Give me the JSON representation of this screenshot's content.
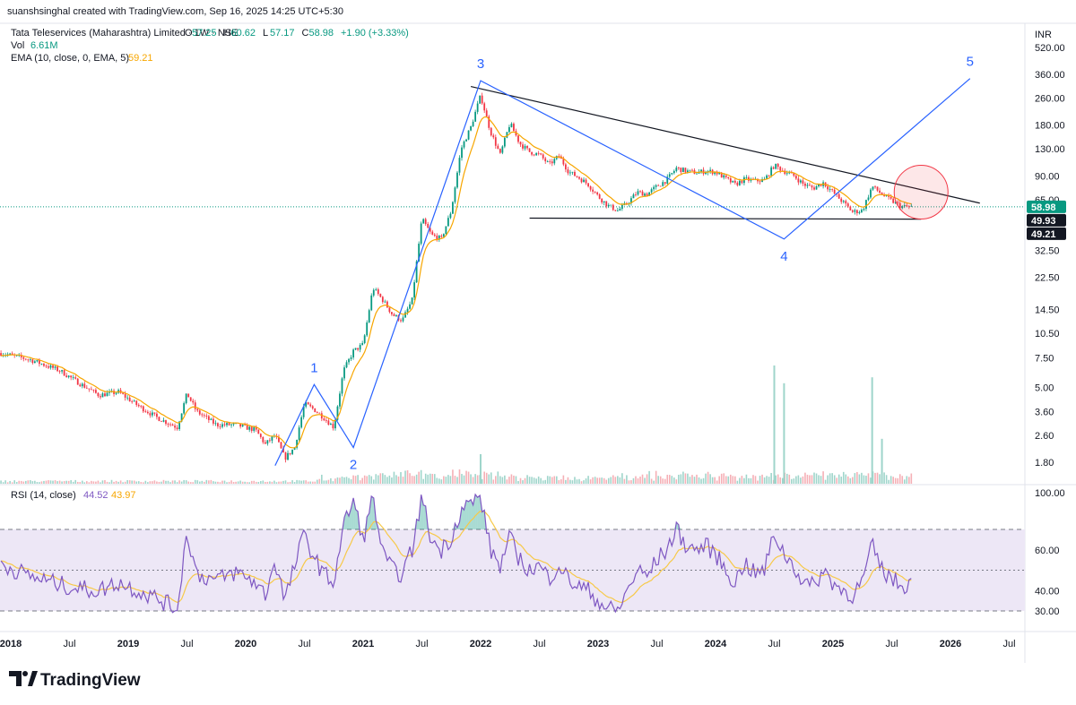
{
  "attribution": "suanshsinghal created with TradingView.com, Sep 16, 2025 14:25 UTC+5:30",
  "legend": {
    "symbol": "Tata Teleservices (Maharashtra) Limited · 1W · NSE",
    "ohlc": [
      {
        "key": "O",
        "value": "57.25"
      },
      {
        "key": "H",
        "value": "60.62"
      },
      {
        "key": "L",
        "value": "57.17"
      },
      {
        "key": "C",
        "value": "58.98"
      }
    ],
    "change": "+1.90 (+3.33%)",
    "vol_label": "Vol",
    "vol_value": "6.61M",
    "ema_label": "EMA (10, close, 0, EMA, 5)",
    "ema_value": "59.21",
    "rsi_label": "RSI (14, close)",
    "rsi_value": "44.52",
    "rsi_ma_value": "43.97"
  },
  "currency": "INR",
  "branding": "TradingView",
  "colors": {
    "up": "#089981",
    "down": "#f23645",
    "ema": "#f7a600",
    "wave": "#2962ff",
    "trendline": "#131722",
    "rsi": "#7e57c2",
    "rsi_ma": "#f7c948",
    "rsi_band": "#ede7f6",
    "price_line": "#089981",
    "circle": "#f23645"
  },
  "price_axis_ticks": [
    "520.00",
    "360.00",
    "260.00",
    "180.00",
    "130.00",
    "90.00",
    "65.00",
    "32.50",
    "22.50",
    "14.50",
    "10.50",
    "7.50",
    "5.00",
    "3.60",
    "2.60",
    "1.80"
  ],
  "price_labels": [
    {
      "text": "58.98",
      "value": 58.98,
      "style": "last"
    },
    {
      "text": "49.93",
      "value": 49.93,
      "style": "dark"
    },
    {
      "text": "49.21",
      "value": 49.21,
      "style": "dark"
    }
  ],
  "rsi_axis_ticks": [
    "100.00",
    "60.00",
    "40.00",
    "30.00"
  ],
  "time_axis_ticks": [
    "2018",
    "Jul",
    "2019",
    "Jul",
    "2020",
    "Jul",
    "2021",
    "Jul",
    "2022",
    "Jul",
    "2023",
    "Jul",
    "2024",
    "Jul",
    "2025",
    "Jul",
    "2026",
    "Jul"
  ],
  "chart_data": {
    "type": "candlestick",
    "title": "Tata Teleservices (Maharashtra) Limited · 1W · NSE",
    "scale": "log",
    "x_range": [
      "2017-12",
      "2026-10"
    ],
    "y_range": [
      1.5,
      620
    ],
    "price_path": [
      [
        "2017-12",
        8.0
      ],
      [
        "2018-03",
        7.3
      ],
      [
        "2018-06",
        6.3
      ],
      [
        "2018-08",
        5.3
      ],
      [
        "2018-10",
        4.5
      ],
      [
        "2018-12",
        4.7
      ],
      [
        "2019-02",
        3.9
      ],
      [
        "2019-04",
        3.3
      ],
      [
        "2019-06",
        2.9
      ],
      [
        "2019-07",
        4.6
      ],
      [
        "2019-08",
        3.6
      ],
      [
        "2019-10",
        3.0
      ],
      [
        "2019-12",
        3.0
      ],
      [
        "2020-02",
        2.8
      ],
      [
        "2020-03",
        2.3
      ],
      [
        "2020-04",
        2.6
      ],
      [
        "2020-05",
        1.9
      ],
      [
        "2020-06",
        2.2
      ],
      [
        "2020-07",
        4.0
      ],
      [
        "2020-08",
        3.7
      ],
      [
        "2020-09",
        3.3
      ],
      [
        "2020-10",
        2.9
      ],
      [
        "2020-11",
        6.3
      ],
      [
        "2020-12",
        8.2
      ],
      [
        "2021-01",
        9.0
      ],
      [
        "2021-02",
        19.5
      ],
      [
        "2021-03",
        16.5
      ],
      [
        "2021-04",
        13.5
      ],
      [
        "2021-05",
        12.5
      ],
      [
        "2021-06",
        16.5
      ],
      [
        "2021-07",
        50.0
      ],
      [
        "2021-08",
        40.0
      ],
      [
        "2021-09",
        38.0
      ],
      [
        "2021-10",
        56.0
      ],
      [
        "2021-11",
        130.0
      ],
      [
        "2021-12",
        175.0
      ],
      [
        "2022-01",
        270.0
      ],
      [
        "2022-02",
        165.0
      ],
      [
        "2022-03",
        120.0
      ],
      [
        "2022-04",
        185.0
      ],
      [
        "2022-05",
        140.0
      ],
      [
        "2022-06",
        125.0
      ],
      [
        "2022-07",
        120.0
      ],
      [
        "2022-08",
        105.0
      ],
      [
        "2022-09",
        118.0
      ],
      [
        "2022-10",
        95.0
      ],
      [
        "2022-11",
        88.0
      ],
      [
        "2022-12",
        80.0
      ],
      [
        "2023-01",
        68.0
      ],
      [
        "2023-02",
        60.0
      ],
      [
        "2023-03",
        56.0
      ],
      [
        "2023-04",
        62.0
      ],
      [
        "2023-05",
        72.0
      ],
      [
        "2023-06",
        70.0
      ],
      [
        "2023-07",
        78.0
      ],
      [
        "2023-08",
        85.0
      ],
      [
        "2023-09",
        100.0
      ],
      [
        "2023-10",
        96.0
      ],
      [
        "2023-11",
        94.0
      ],
      [
        "2023-12",
        96.0
      ],
      [
        "2024-01",
        95.0
      ],
      [
        "2024-02",
        87.0
      ],
      [
        "2024-03",
        80.0
      ],
      [
        "2024-04",
        86.0
      ],
      [
        "2024-05",
        84.0
      ],
      [
        "2024-06",
        85.0
      ],
      [
        "2024-07",
        104.0
      ],
      [
        "2024-08",
        96.0
      ],
      [
        "2024-09",
        90.0
      ],
      [
        "2024-10",
        80.0
      ],
      [
        "2024-11",
        76.0
      ],
      [
        "2024-12",
        82.0
      ],
      [
        "2025-01",
        72.0
      ],
      [
        "2025-02",
        63.0
      ],
      [
        "2025-03",
        55.0
      ],
      [
        "2025-04",
        56.0
      ],
      [
        "2025-05",
        78.0
      ],
      [
        "2025-06",
        70.0
      ],
      [
        "2025-07",
        64.0
      ],
      [
        "2025-08",
        59.0
      ],
      [
        "2025-09",
        58.98
      ]
    ],
    "ema": {
      "name": "EMA (10, close, 0, EMA, 5)",
      "last": 59.21
    },
    "volume_spikes": [
      {
        "x": "2022-01",
        "v": 0.25
      },
      {
        "x": "2024-07",
        "v": 1.0
      },
      {
        "x": "2024-08",
        "v": 0.85
      },
      {
        "x": "2025-05",
        "v": 0.9
      },
      {
        "x": "2025-06",
        "v": 0.38
      }
    ],
    "elliott_wave": [
      {
        "label": "",
        "x": "2020-04",
        "y": 1.72
      },
      {
        "label": "1",
        "x": "2020-08",
        "y": 5.2
      },
      {
        "label": "2",
        "x": "2020-12",
        "y": 2.2
      },
      {
        "label": "3",
        "x": "2022-01",
        "y": 330
      },
      {
        "label": "4",
        "x": "2024-08",
        "y": 38
      },
      {
        "label": "5",
        "x": "2026-03",
        "y": 340
      }
    ],
    "trendlines": [
      {
        "from": [
          "2021-12",
          305
        ],
        "to": [
          "2026-04",
          62
        ]
      },
      {
        "from": [
          "2022-06",
          50.5
        ],
        "to": [
          "2025-10",
          49.8
        ]
      }
    ],
    "highlight_circle": {
      "x": "2025-10",
      "y": 72
    },
    "rsi": {
      "name": "RSI (14, close)",
      "last": 44.52,
      "ma_last": 43.97,
      "bands": [
        30,
        70
      ],
      "middle": 50,
      "path": [
        [
          "2017-12",
          53
        ],
        [
          "2018-03",
          47
        ],
        [
          "2018-06",
          43
        ],
        [
          "2018-08",
          41
        ],
        [
          "2018-10",
          40
        ],
        [
          "2018-12",
          44
        ],
        [
          "2019-02",
          40
        ],
        [
          "2019-04",
          36
        ],
        [
          "2019-06",
          31
        ],
        [
          "2019-07",
          69
        ],
        [
          "2019-08",
          48
        ],
        [
          "2019-10",
          45
        ],
        [
          "2019-12",
          49
        ],
        [
          "2020-02",
          44
        ],
        [
          "2020-03",
          38
        ],
        [
          "2020-04",
          55
        ],
        [
          "2020-05",
          35
        ],
        [
          "2020-06",
          52
        ],
        [
          "2020-07",
          68
        ],
        [
          "2020-08",
          56
        ],
        [
          "2020-09",
          48
        ],
        [
          "2020-10",
          44
        ],
        [
          "2020-11",
          72
        ],
        [
          "2020-12",
          84
        ],
        [
          "2021-01",
          65
        ],
        [
          "2021-02",
          86
        ],
        [
          "2021-03",
          58
        ],
        [
          "2021-04",
          50
        ],
        [
          "2021-05",
          48
        ],
        [
          "2021-06",
          60
        ],
        [
          "2021-07",
          86
        ],
        [
          "2021-08",
          64
        ],
        [
          "2021-09",
          60
        ],
        [
          "2021-10",
          66
        ],
        [
          "2021-11",
          80
        ],
        [
          "2021-12",
          83
        ],
        [
          "2022-01",
          86
        ],
        [
          "2022-02",
          60
        ],
        [
          "2022-03",
          52
        ],
        [
          "2022-04",
          66
        ],
        [
          "2022-05",
          55
        ],
        [
          "2022-06",
          50
        ],
        [
          "2022-07",
          52
        ],
        [
          "2022-08",
          46
        ],
        [
          "2022-09",
          53
        ],
        [
          "2022-10",
          45
        ],
        [
          "2022-11",
          42
        ],
        [
          "2022-12",
          40
        ],
        [
          "2023-01",
          35
        ],
        [
          "2023-02",
          31
        ],
        [
          "2023-03",
          30
        ],
        [
          "2023-04",
          40
        ],
        [
          "2023-05",
          50
        ],
        [
          "2023-06",
          47
        ],
        [
          "2023-07",
          55
        ],
        [
          "2023-08",
          60
        ],
        [
          "2023-09",
          70
        ],
        [
          "2023-10",
          62
        ],
        [
          "2023-11",
          60
        ],
        [
          "2023-12",
          62
        ],
        [
          "2024-01",
          58
        ],
        [
          "2024-02",
          50
        ],
        [
          "2024-03",
          44
        ],
        [
          "2024-04",
          54
        ],
        [
          "2024-05",
          48
        ],
        [
          "2024-06",
          50
        ],
        [
          "2024-07",
          68
        ],
        [
          "2024-08",
          58
        ],
        [
          "2024-09",
          52
        ],
        [
          "2024-10",
          44
        ],
        [
          "2024-11",
          42
        ],
        [
          "2024-12",
          50
        ],
        [
          "2025-01",
          44
        ],
        [
          "2025-02",
          40
        ],
        [
          "2025-03",
          38
        ],
        [
          "2025-04",
          44
        ],
        [
          "2025-05",
          62
        ],
        [
          "2025-06",
          50
        ],
        [
          "2025-07",
          46
        ],
        [
          "2025-08",
          42
        ],
        [
          "2025-09",
          44.52
        ]
      ]
    }
  }
}
